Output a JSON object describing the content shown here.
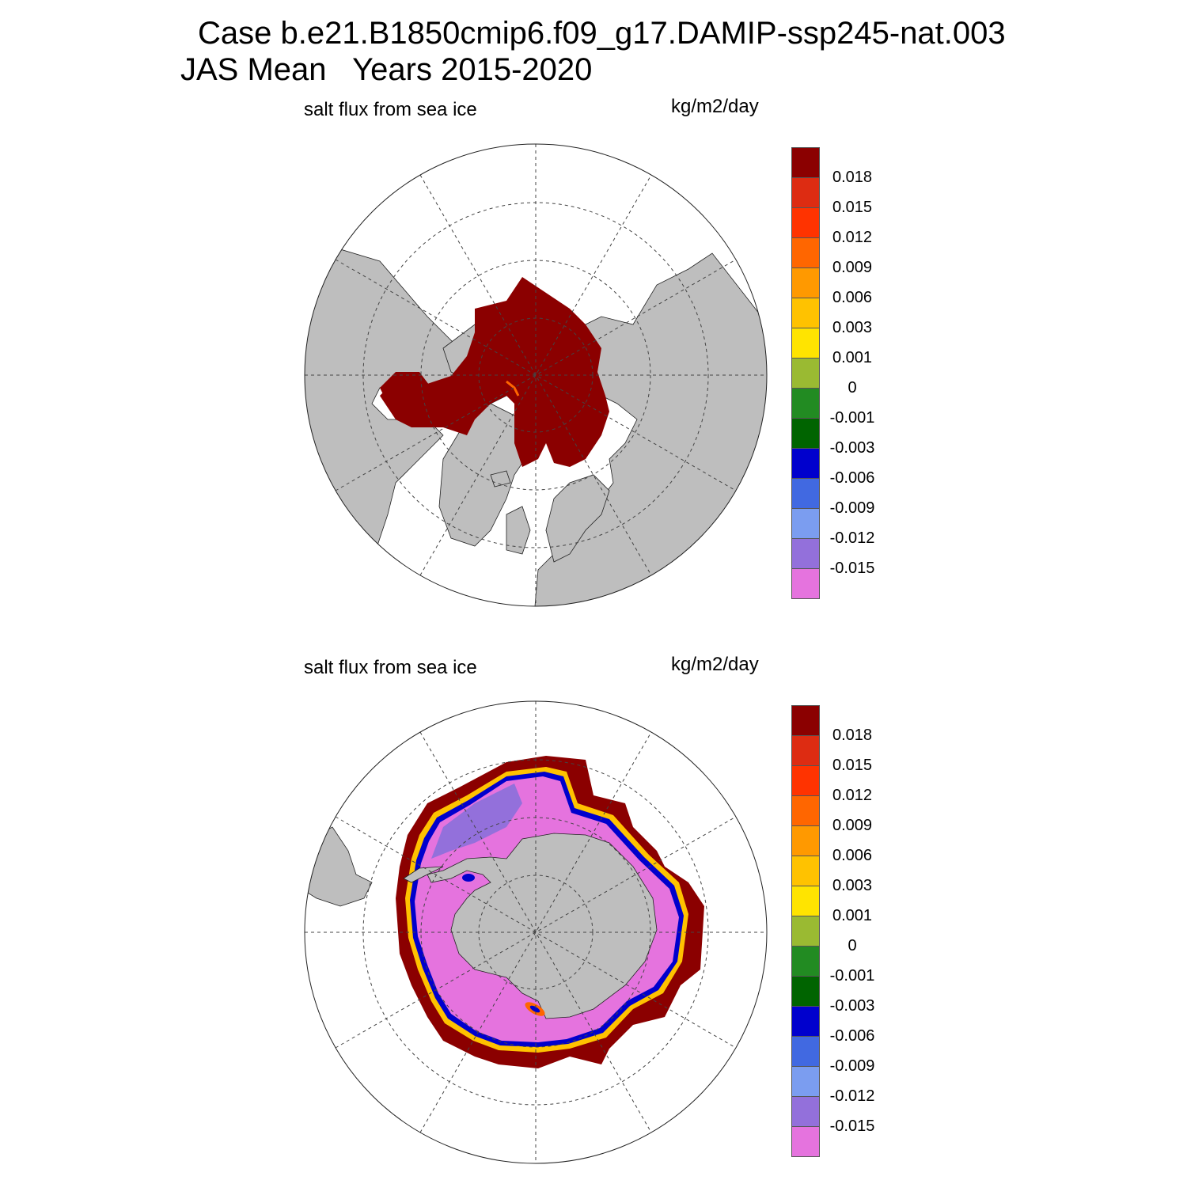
{
  "figure": {
    "title": "Case b.e21.B1850cmip6.f09_g17.DAMIP-ssp245-nat.003",
    "subtitle": "JAS Mean   Years 2015-2020"
  },
  "panels": [
    {
      "hemisphere": "north",
      "variable": "salt flux from sea ice",
      "units": "kg/m2/day"
    },
    {
      "hemisphere": "south",
      "variable": "salt flux from sea ice",
      "units": "kg/m2/day"
    }
  ],
  "colorbar": {
    "colors": [
      "#8b0000",
      "#dd2c12",
      "#ff3300",
      "#ff6600",
      "#ff9900",
      "#ffc200",
      "#ffe400",
      "#9aba32",
      "#228b22",
      "#006400",
      "#0000cd",
      "#4169e1",
      "#7b9df0",
      "#9370db",
      "#e573de"
    ],
    "labels": [
      "0.018",
      "0.015",
      "0.012",
      "0.009",
      "0.006",
      "0.003",
      "0.001",
      "0",
      "-0.001",
      "-0.003",
      "-0.006",
      "-0.009",
      "-0.012",
      "-0.015"
    ]
  },
  "map_colors": {
    "land": "#bebebe",
    "ocean": "#ffffff",
    "grid": "#444444"
  }
}
